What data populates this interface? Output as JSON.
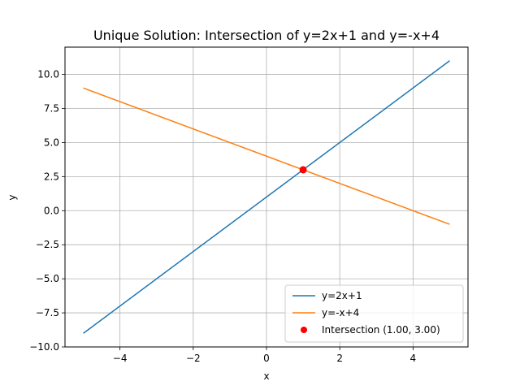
{
  "chart_data": {
    "type": "line",
    "title": "Unique Solution: Intersection of y=2x+1 and y=-x+4",
    "xlabel": "x",
    "ylabel": "y",
    "xlim": [
      -5.5,
      5.5
    ],
    "ylim": [
      -10,
      12
    ],
    "xticks": [
      -4,
      -2,
      0,
      2,
      4
    ],
    "xtick_labels": [
      "−4",
      "−2",
      "0",
      "2",
      "4"
    ],
    "yticks": [
      -10,
      -7.5,
      -5,
      -2.5,
      0,
      2.5,
      5,
      7.5,
      10
    ],
    "ytick_labels": [
      "−10.0",
      "−7.5",
      "−5.0",
      "−2.5",
      "0.0",
      "2.5",
      "5.0",
      "7.5",
      "10.0"
    ],
    "grid": true,
    "legend_position": "lower-right",
    "series": [
      {
        "name": "y=2x+1",
        "kind": "line",
        "color": "#1f77b4",
        "x": [
          -5,
          5
        ],
        "y": [
          -9,
          11
        ]
      },
      {
        "name": "y=-x+4",
        "kind": "line",
        "color": "#ff7f0e",
        "x": [
          -5,
          5
        ],
        "y": [
          9,
          -1
        ]
      },
      {
        "name": "Intersection (1.00, 3.00)",
        "kind": "point",
        "color": "#ff0000",
        "x": [
          1
        ],
        "y": [
          3
        ]
      }
    ]
  }
}
